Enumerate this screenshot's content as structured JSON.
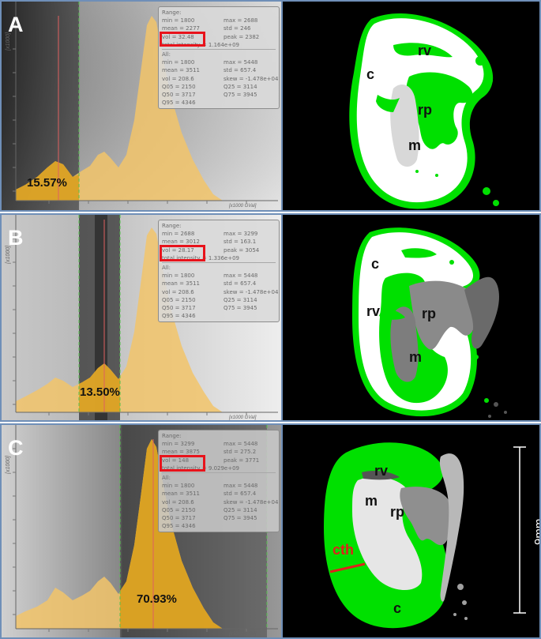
{
  "panels": [
    {
      "letter": "A",
      "percent": "15.57%",
      "y_unit": "[x1000]",
      "x_unit": "[x1000 GVal]",
      "range_title": "Range:",
      "range_rows": [
        [
          "min = 1800",
          "max = 2688"
        ],
        [
          "mean = 2277",
          "std = 246"
        ],
        [
          "vol = 32.48",
          "peak = 2382"
        ],
        [
          "total intensity = 1.164e+09",
          ""
        ]
      ],
      "all_title": "All:",
      "all_rows": [
        [
          "min = 1800",
          "max = 5448"
        ],
        [
          "mean = 3511",
          "std = 657.4"
        ],
        [
          "vol = 208.6",
          "skew = -1.478e+04"
        ],
        [
          "Q05 = 2150",
          "Q25 = 3114"
        ],
        [
          "Q50 = 3717",
          "Q75 = 3945"
        ],
        [
          "Q95 = 4346",
          ""
        ]
      ],
      "labels": {
        "rv": "rv",
        "c": "c",
        "rp": "rp",
        "m": "m"
      }
    },
    {
      "letter": "B",
      "percent": "13.50%",
      "y_unit": "[x1000]",
      "x_unit": "[x1000 GVal]",
      "range_title": "Range:",
      "range_rows": [
        [
          "min = 2688",
          "max = 3299"
        ],
        [
          "mean = 3012",
          "std = 163.1"
        ],
        [
          "vol = 28.17",
          "peak = 3054"
        ],
        [
          "total intensity = 1.336e+09",
          ""
        ]
      ],
      "all_title": "All:",
      "all_rows": [
        [
          "min = 1800",
          "max = 5448"
        ],
        [
          "mean = 3511",
          "std = 657.4"
        ],
        [
          "vol = 208.6",
          "skew = -1.478e+04"
        ],
        [
          "Q05 = 2150",
          "Q25 = 3114"
        ],
        [
          "Q50 = 3717",
          "Q75 = 3945"
        ],
        [
          "Q95 = 4346",
          ""
        ]
      ],
      "labels": {
        "c": "c",
        "rv": "rv",
        "rp": "rp",
        "m": "m"
      }
    },
    {
      "letter": "C",
      "percent": "70.93%",
      "y_unit": "[x1000]",
      "x_unit": "[x1000 GVal]",
      "range_title": "Range:",
      "range_rows": [
        [
          "min = 3299",
          "max = 5448"
        ],
        [
          "mean = 3875",
          "std = 275.2"
        ],
        [
          "vol = 148",
          "peak = 3771"
        ],
        [
          "total intensity = 9.029e+09",
          ""
        ]
      ],
      "all_title": "All:",
      "all_rows": [
        [
          "min = 1800",
          "max = 5448"
        ],
        [
          "mean = 3511",
          "std = 657.4"
        ],
        [
          "vol = 208.6",
          "skew = -1.478e+04"
        ],
        [
          "Q05 = 2150",
          "Q25 = 3114"
        ],
        [
          "Q50 = 3717",
          "Q75 = 3945"
        ],
        [
          "Q95 = 4346",
          ""
        ]
      ],
      "labels": {
        "rv": "rv",
        "m": "m",
        "rp": "rp",
        "cth": "cth",
        "c": "c"
      },
      "scale": "9mm"
    }
  ],
  "colors": {
    "histogram_fill": "#f2c46a",
    "selected_fill": "#d9a020",
    "segmentation": "#00e000",
    "highlight_box": "#e8131b",
    "cth_line": "#e0201c"
  }
}
